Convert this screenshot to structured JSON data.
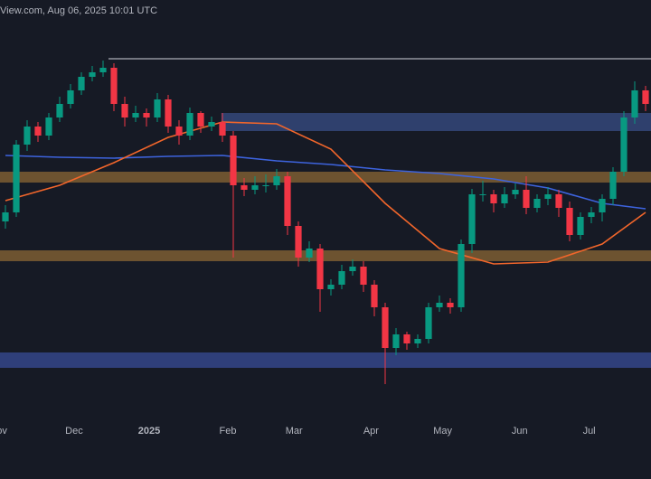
{
  "chart_data": {
    "type": "candlestick",
    "header": "View.com, Aug 06, 2025 10:01 UTC",
    "xlim": [
      -0.5,
      59.5
    ],
    "ylim": [
      0,
      485
    ],
    "xticks": [
      {
        "value": -0.33,
        "label": "ov"
      },
      {
        "value": 6.33,
        "label": "Dec"
      },
      {
        "value": 13.25,
        "label": "2025"
      },
      {
        "value": 20.5,
        "label": "Feb"
      },
      {
        "value": 26.6,
        "label": "Mar"
      },
      {
        "value": 33.7,
        "label": "Apr"
      },
      {
        "value": 40.3,
        "label": "May"
      },
      {
        "value": 47.4,
        "label": "Jun"
      },
      {
        "value": 53.8,
        "label": "Jul"
      }
    ],
    "up_color": "#089981",
    "down_color": "#f23645",
    "x": [
      0,
      1,
      2,
      3,
      4,
      5,
      6,
      7,
      8,
      9,
      10,
      11,
      12,
      13,
      14,
      15,
      16,
      17,
      18,
      19,
      20,
      21,
      22,
      23,
      24,
      25,
      26,
      27,
      28,
      29,
      30,
      31,
      32,
      33,
      34,
      35,
      36,
      37,
      38,
      39,
      40,
      41,
      42,
      43,
      44,
      45,
      46,
      47,
      48,
      49,
      50,
      51,
      52,
      53,
      54,
      55,
      56,
      57,
      58,
      59
    ],
    "open": [
      240,
      250,
      325,
      345,
      335,
      355,
      370,
      385,
      400,
      405,
      410,
      370,
      355,
      360,
      355,
      375,
      345,
      335,
      360,
      345,
      350,
      335,
      280,
      275,
      280,
      280,
      290,
      235,
      200,
      210,
      165,
      170,
      185,
      190,
      170,
      145,
      100,
      115,
      105,
      110,
      145,
      150,
      145,
      215,
      270,
      270,
      260,
      270,
      275,
      255,
      265,
      270,
      255,
      225,
      245,
      250,
      265,
      295,
      355,
      385
    ],
    "high": [
      258,
      330,
      352,
      350,
      360,
      378,
      392,
      405,
      412,
      418,
      415,
      378,
      368,
      365,
      382,
      380,
      352,
      366,
      362,
      356,
      360,
      340,
      288,
      290,
      292,
      298,
      295,
      240,
      218,
      215,
      176,
      192,
      198,
      196,
      175,
      150,
      122,
      118,
      115,
      150,
      158,
      155,
      220,
      276,
      285,
      275,
      278,
      282,
      290,
      270,
      278,
      275,
      262,
      250,
      256,
      270,
      300,
      362,
      395,
      390
    ],
    "low": [
      232,
      245,
      318,
      328,
      330,
      350,
      365,
      380,
      395,
      400,
      362,
      345,
      350,
      345,
      350,
      338,
      325,
      330,
      338,
      340,
      328,
      200,
      268,
      270,
      272,
      275,
      225,
      190,
      195,
      140,
      158,
      165,
      180,
      162,
      135,
      60,
      92,
      98,
      100,
      105,
      140,
      138,
      140,
      205,
      262,
      250,
      255,
      265,
      248,
      250,
      258,
      245,
      218,
      220,
      238,
      240,
      258,
      290,
      348,
      362
    ],
    "close": [
      250,
      325,
      345,
      335,
      355,
      370,
      385,
      400,
      405,
      410,
      370,
      355,
      360,
      355,
      375,
      345,
      335,
      360,
      345,
      350,
      335,
      280,
      275,
      280,
      280,
      290,
      235,
      200,
      210,
      165,
      170,
      185,
      190,
      170,
      145,
      100,
      115,
      105,
      110,
      145,
      150,
      145,
      215,
      270,
      270,
      260,
      270,
      275,
      255,
      265,
      270,
      255,
      225,
      245,
      250,
      265,
      295,
      355,
      385,
      370
    ],
    "series": [
      {
        "color": "#3d63dd",
        "x": [
          0,
          5,
          10,
          15,
          20,
          25,
          30,
          35,
          40,
          45,
          50,
          55,
          59
        ],
        "values": [
          313,
          311,
          310,
          312,
          313,
          307,
          303,
          297,
          293,
          287,
          277,
          260,
          254
        ]
      },
      {
        "color": "#f2662b",
        "x": [
          0,
          5,
          10,
          15,
          20,
          25,
          30,
          35,
          40,
          45,
          50,
          55,
          59
        ],
        "values": [
          263,
          280,
          305,
          333,
          350,
          348,
          320,
          260,
          210,
          193,
          195,
          215,
          250
        ]
      }
    ],
    "zones": [
      {
        "color": "#34487a",
        "range": [
          340,
          360
        ],
        "x_start": 19.9
      },
      {
        "color": "#7d5e32",
        "range": [
          283,
          295
        ]
      },
      {
        "color": "#7d5e32",
        "range": [
          196,
          208
        ]
      },
      {
        "color": "#34468a",
        "range": [
          78,
          95
        ]
      }
    ],
    "level": {
      "color": "#d0d3dc",
      "value": 420,
      "x_start": 9.5
    }
  }
}
